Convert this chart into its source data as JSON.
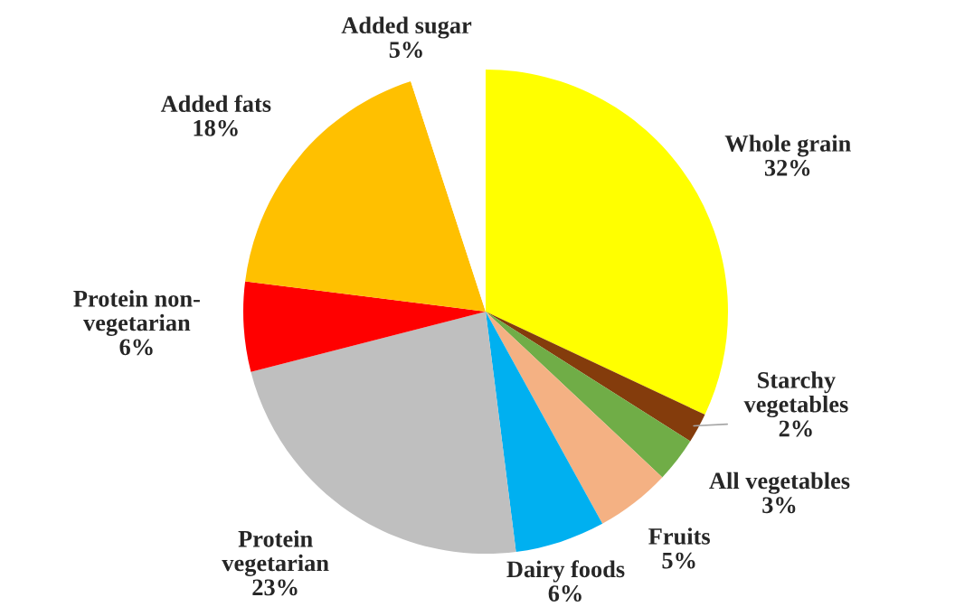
{
  "chart_data": {
    "type": "pie",
    "categories": [
      "Whole grain",
      "Starchy\nvegetables",
      "All vegetables",
      "Fruits",
      "Dairy foods",
      "Protein\nvegetarian",
      "Protein non-\nvegetarian",
      "Added fats",
      "Added sugar"
    ],
    "values": [
      32,
      2,
      3,
      5,
      6,
      23,
      6,
      18,
      5
    ],
    "colors": [
      "#ffff00",
      "#843c0c",
      "#70ad47",
      "#f4b183",
      "#00b0f0",
      "#bfbfbf",
      "#ff0000",
      "#ffc000",
      "#ffffff"
    ],
    "value_labels": [
      "32%",
      "2%",
      "3%",
      "5%",
      "6%",
      "23%",
      "6%",
      "18%",
      "5%"
    ]
  }
}
